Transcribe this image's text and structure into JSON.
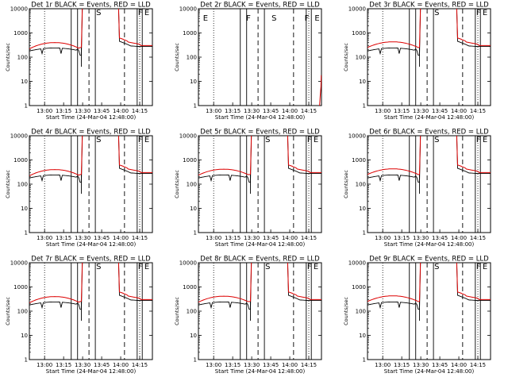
{
  "colors": {
    "events": "#000000",
    "lld": "#dd0000",
    "frame": "#000000"
  },
  "legend_text": "BLACK = Events, RED = LLD",
  "chart_data": [
    {
      "type": "line",
      "title": "Det 1r BLACK = Events, RED = LLD",
      "xlabel": "Start Time (24-Mar-04 12:48:00)",
      "ylabel": "Counts/sec",
      "yscale": "log",
      "ylim": [
        1,
        10000
      ],
      "x_tick_labels": [
        "13:00",
        "13:15",
        "13:30",
        "13:45",
        "14:00",
        "14:15"
      ],
      "y_tick_labels": [
        "1",
        "10",
        "100",
        "1000",
        "10000"
      ],
      "markers": [
        "S",
        "F",
        "E"
      ],
      "series": []
    },
    {
      "type": "line",
      "title": "Det 2r BLACK = Events, RED = LLD",
      "xlabel": "Start Time (24-Mar-04 12:48:00)",
      "ylabel": "Counts/sec",
      "yscale": "log",
      "ylim": [
        1,
        10000
      ],
      "x_tick_labels": [
        "13:00",
        "13:15",
        "13:30",
        "13:45",
        "14:00",
        "14:15"
      ],
      "y_tick_labels": [
        "1",
        "10",
        "100",
        "1000",
        "10000"
      ],
      "markers": [
        "E",
        "F",
        "S",
        "F",
        "E"
      ],
      "series": []
    },
    {
      "type": "line",
      "title": "Det 3r BLACK = Events, RED = LLD",
      "xlabel": "Start Time (24-Mar-04 12:48:00)",
      "ylabel": "Counts/sec",
      "yscale": "log",
      "ylim": [
        1,
        10000
      ],
      "x_tick_labels": [
        "13:00",
        "13:15",
        "13:30",
        "13:45",
        "14:00",
        "14:15"
      ],
      "y_tick_labels": [
        "1",
        "10",
        "100",
        "1000",
        "10000"
      ],
      "markers": [
        "S",
        "F",
        "E"
      ],
      "series": []
    },
    {
      "type": "line",
      "title": "Det 4r BLACK = Events, RED = LLD",
      "xlabel": "Start Time (24-Mar-04 12:48:00)",
      "ylabel": "Counts/sec",
      "yscale": "log",
      "ylim": [
        1,
        10000
      ],
      "x_tick_labels": [
        "13:00",
        "13:15",
        "13:30",
        "13:45",
        "14:00",
        "14:15"
      ],
      "y_tick_labels": [
        "1",
        "10",
        "100",
        "1000",
        "10000"
      ],
      "markers": [
        "S",
        "F",
        "E"
      ],
      "series": []
    },
    {
      "type": "line",
      "title": "Det 5r BLACK = Events, RED = LLD",
      "xlabel": "Start Time (24-Mar-04 12:48:00)",
      "ylabel": "Counts/sec",
      "yscale": "log",
      "ylim": [
        1,
        10000
      ],
      "x_tick_labels": [
        "13:00",
        "13:15",
        "13:30",
        "13:45",
        "14:00",
        "14:15"
      ],
      "y_tick_labels": [
        "1",
        "10",
        "100",
        "1000",
        "10000"
      ],
      "markers": [
        "S",
        "F",
        "E"
      ],
      "series": []
    },
    {
      "type": "line",
      "title": "Det 6r BLACK = Events, RED = LLD",
      "xlabel": "Start Time (24-Mar-04 12:48:00)",
      "ylabel": "Counts/sec",
      "yscale": "log",
      "ylim": [
        1,
        10000
      ],
      "x_tick_labels": [
        "13:00",
        "13:15",
        "13:30",
        "13:45",
        "14:00",
        "14:15"
      ],
      "y_tick_labels": [
        "1",
        "10",
        "100",
        "1000",
        "10000"
      ],
      "markers": [
        "S",
        "F",
        "E"
      ],
      "series": []
    },
    {
      "type": "line",
      "title": "Det 7r BLACK = Events, RED = LLD",
      "xlabel": "Start Time (24-Mar-04 12:48:00)",
      "ylabel": "Counts/sec",
      "yscale": "log",
      "ylim": [
        1,
        10000
      ],
      "x_tick_labels": [
        "13:00",
        "13:15",
        "13:30",
        "13:45",
        "14:00",
        "14:15"
      ],
      "y_tick_labels": [
        "1",
        "10",
        "100",
        "1000",
        "10000"
      ],
      "markers": [
        "S",
        "F",
        "E"
      ],
      "series": []
    },
    {
      "type": "line",
      "title": "Det 8r BLACK = Events, RED = LLD",
      "xlabel": "Start Time (24-Mar-04 12:48:00)",
      "ylabel": "Counts/sec",
      "yscale": "log",
      "ylim": [
        1,
        10000
      ],
      "x_tick_labels": [
        "13:00",
        "13:15",
        "13:30",
        "13:45",
        "14:00",
        "14:15"
      ],
      "y_tick_labels": [
        "1",
        "10",
        "100",
        "1000",
        "10000"
      ],
      "markers": [
        "S",
        "F",
        "E"
      ],
      "series": []
    },
    {
      "type": "line",
      "title": "Det 9r BLACK = Events, RED = LLD",
      "xlabel": "Start Time (24-Mar-04 12:48:00)",
      "ylabel": "Counts/sec",
      "yscale": "log",
      "ylim": [
        1,
        10000
      ],
      "x_tick_labels": [
        "13:00",
        "13:15",
        "13:30",
        "13:45",
        "14:00",
        "14:15"
      ],
      "y_tick_labels": [
        "1",
        "10",
        "100",
        "1000",
        "10000"
      ],
      "markers": [
        "S",
        "F",
        "E"
      ],
      "series": []
    }
  ]
}
